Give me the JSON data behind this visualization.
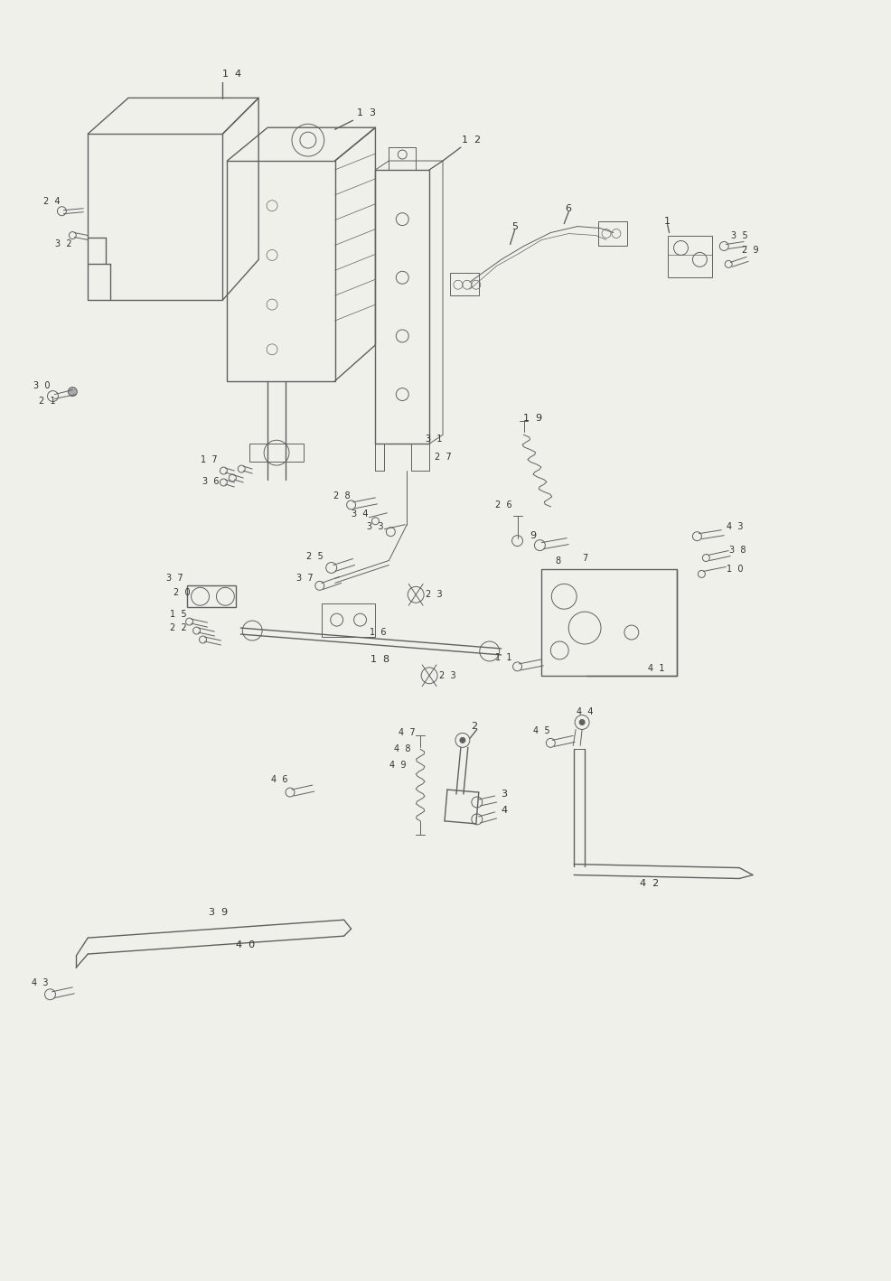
{
  "title": "",
  "bg_color": "#f0f0eb",
  "line_color": "#606060",
  "text_color": "#303030",
  "fig_width": 9.86,
  "fig_height": 14.18,
  "dpi": 100
}
